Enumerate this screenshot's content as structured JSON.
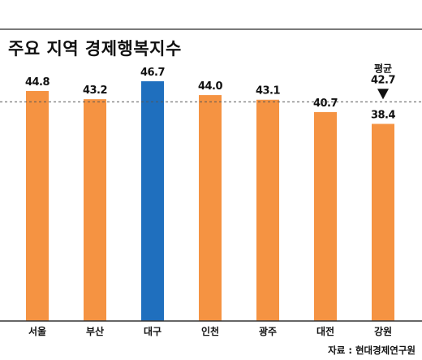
{
  "title": "주요 지역 경제행복지수",
  "source": "자료 : 현대경제연구원",
  "colors": {
    "bar": "#f59342",
    "highlight": "#1f6fbe",
    "text": "#111111",
    "avg_line": "#555555"
  },
  "average": {
    "label": "평균",
    "value_text": "42.7"
  },
  "chart_data": {
    "type": "bar",
    "title": "주요 지역 경제행복지수",
    "categories": [
      "서울",
      "부산",
      "대구",
      "인천",
      "광주",
      "대전",
      "강원"
    ],
    "values": [
      44.8,
      43.2,
      46.7,
      44.0,
      43.1,
      40.7,
      38.4
    ],
    "value_labels": [
      "44.8",
      "43.2",
      "46.7",
      "44.0",
      "43.1",
      "40.7",
      "38.4"
    ],
    "highlight_index": 2,
    "average": 42.7,
    "xlabel": "",
    "ylabel": "",
    "ylim": [
      0,
      46.7
    ],
    "grid": false,
    "legend": "none"
  }
}
